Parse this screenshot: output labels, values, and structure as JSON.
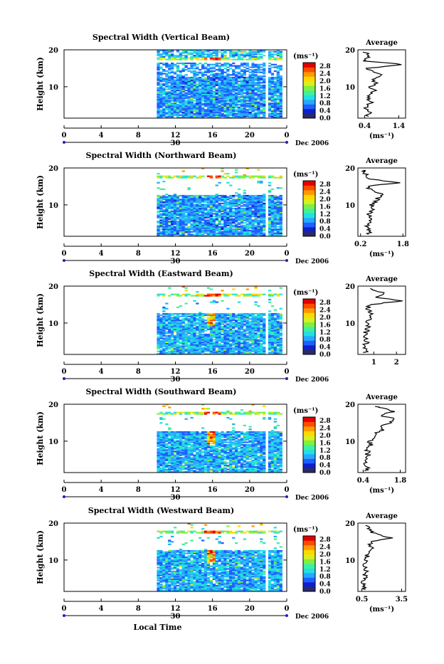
{
  "chart_data": [
    {
      "type": "heatmap",
      "title": "Spectral Width (Vertical Beam)",
      "xlabel": "",
      "ylabel": "Height (km)",
      "x_ticks": [
        "0",
        "4",
        "8",
        "12",
        "16",
        "20",
        "0"
      ],
      "xlim": [
        0,
        24
      ],
      "ylim": [
        1.5,
        20
      ],
      "y_ticks": [
        "20",
        "10"
      ],
      "date_label": "30",
      "month_label": "Dec 2006",
      "colorbar": {
        "label": "(ms⁻¹)",
        "ticks": [
          "2.8",
          "2.4",
          "2.0",
          "1.6",
          "1.2",
          "0.8",
          "0.4",
          "0.0"
        ],
        "range": [
          0.0,
          3.0
        ]
      },
      "data_time_range": [
        10,
        23.5
      ],
      "gap_time": 21.8,
      "average": {
        "title": "Average",
        "xlabel": "(ms⁻¹)",
        "x_ticks": [
          "0.4",
          "1.4"
        ],
        "xlim": [
          0.2,
          1.6
        ],
        "height": [
          2,
          3,
          4,
          5,
          6,
          7,
          8,
          9,
          10,
          11,
          12,
          13,
          14,
          15,
          16,
          17,
          18,
          19,
          19.5
        ],
        "value": [
          0.45,
          0.55,
          0.4,
          0.5,
          0.6,
          0.45,
          0.55,
          0.7,
          0.5,
          0.8,
          0.6,
          0.9,
          0.6,
          0.45,
          1.55,
          0.4,
          0.5,
          0.45,
          0.4
        ]
      }
    },
    {
      "type": "heatmap",
      "title": "Spectral Width (Northward Beam)",
      "xlabel": "",
      "ylabel": "Height (km)",
      "x_ticks": [
        "0",
        "4",
        "8",
        "12",
        "16",
        "20",
        "0"
      ],
      "xlim": [
        0,
        24
      ],
      "ylim": [
        1.5,
        20
      ],
      "y_ticks": [
        "20",
        "10"
      ],
      "date_label": "30",
      "month_label": "Dec 2006",
      "colorbar": {
        "label": "(ms⁻¹)",
        "ticks": [
          "2.8",
          "2.4",
          "2.0",
          "1.6",
          "1.2",
          "0.8",
          "0.4",
          "0.0"
        ],
        "range": [
          0.0,
          3.0
        ]
      },
      "data_time_range": [
        10,
        23.5
      ],
      "gap_time": 21.8,
      "average": {
        "title": "Average",
        "xlabel": "(ms⁻¹)",
        "x_ticks": [
          "0.2",
          "1.8"
        ],
        "xlim": [
          0.1,
          1.9
        ],
        "height": [
          2,
          3,
          4,
          5,
          6,
          7,
          8,
          9,
          10,
          11,
          12,
          13,
          14,
          15,
          16,
          17,
          18,
          19,
          19.5
        ],
        "value": [
          0.5,
          0.55,
          0.45,
          0.55,
          0.6,
          0.5,
          0.55,
          0.7,
          0.6,
          0.75,
          0.9,
          1.0,
          0.6,
          0.4,
          1.7,
          0.5,
          0.4,
          0.35,
          0.3
        ]
      }
    },
    {
      "type": "heatmap",
      "title": "Spectral Width (Eastward Beam)",
      "xlabel": "",
      "ylabel": "Height (km)",
      "x_ticks": [
        "0",
        "4",
        "8",
        "12",
        "16",
        "20",
        "0"
      ],
      "xlim": [
        0,
        24
      ],
      "ylim": [
        1.5,
        20
      ],
      "y_ticks": [
        "20",
        "10"
      ],
      "date_label": "30",
      "month_label": "Dec 2006",
      "colorbar": {
        "label": "(ms⁻¹)",
        "ticks": [
          "2.8",
          "2.4",
          "2.0",
          "1.6",
          "1.2",
          "0.8",
          "0.4",
          "0.0"
        ],
        "range": [
          0.0,
          3.0
        ]
      },
      "data_time_range": [
        10,
        23.5
      ],
      "gap_time": 21.8,
      "average": {
        "title": "Average",
        "xlabel": "",
        "x_ticks": [
          "1",
          "2"
        ],
        "xlim": [
          0.3,
          2.4
        ],
        "height": [
          2,
          3,
          4,
          5,
          6,
          7,
          8,
          9,
          10,
          11,
          12,
          13,
          14,
          15,
          16,
          17,
          18,
          19,
          19.5
        ],
        "value": [
          0.6,
          0.65,
          0.6,
          0.7,
          0.65,
          0.6,
          0.7,
          0.75,
          0.7,
          0.8,
          0.9,
          0.8,
          0.7,
          0.9,
          2.2,
          1.2,
          1.5,
          1.0,
          0.8
        ]
      }
    },
    {
      "type": "heatmap",
      "title": "Spectral Width (Southward Beam)",
      "xlabel": "",
      "ylabel": "Height (km)",
      "x_ticks": [
        "0",
        "4",
        "8",
        "12",
        "16",
        "20",
        "0"
      ],
      "xlim": [
        0,
        24
      ],
      "ylim": [
        1.5,
        20
      ],
      "y_ticks": [
        "20",
        "10"
      ],
      "date_label": "30",
      "month_label": "Dec 2006",
      "colorbar": {
        "label": "(ms⁻¹)",
        "ticks": [
          "2.8",
          "2.4",
          "2.0",
          "1.6",
          "1.2",
          "0.8",
          "0.4",
          "0.0"
        ],
        "range": [
          0.0,
          3.0
        ]
      },
      "data_time_range": [
        10,
        23.5
      ],
      "gap_time": 21.8,
      "average": {
        "title": "Average",
        "xlabel": "(ms⁻¹)",
        "x_ticks": [
          "0.4",
          "1.8"
        ],
        "xlim": [
          0.2,
          2.0
        ],
        "height": [
          2,
          3,
          4,
          5,
          6,
          7,
          8,
          9,
          10,
          11,
          12,
          13,
          14,
          15,
          16,
          17,
          18,
          19,
          19.5
        ],
        "value": [
          0.5,
          0.55,
          0.5,
          0.55,
          0.6,
          0.55,
          0.6,
          0.7,
          0.65,
          0.8,
          0.9,
          1.1,
          1.0,
          1.4,
          1.6,
          1.0,
          1.5,
          1.2,
          0.8
        ]
      }
    },
    {
      "type": "heatmap",
      "title": "Spectral Width (Westward Beam)",
      "xlabel": "Local Time",
      "ylabel": "Height (km)",
      "x_ticks": [
        "0",
        "4",
        "8",
        "12",
        "16",
        "20",
        "0"
      ],
      "xlim": [
        0,
        24
      ],
      "ylim": [
        1.5,
        20
      ],
      "y_ticks": [
        "20",
        "10"
      ],
      "date_label": "30",
      "month_label": "Dec 2006",
      "colorbar": {
        "label": "(ms⁻¹)",
        "ticks": [
          "2.8",
          "2.4",
          "2.0",
          "1.6",
          "1.2",
          "0.8",
          "0.4",
          "0.0"
        ],
        "range": [
          0.0,
          3.0
        ]
      },
      "data_time_range": [
        10,
        23.5
      ],
      "gap_time": 21.8,
      "average": {
        "title": "Average",
        "xlabel": "(ms⁻¹)",
        "x_ticks": [
          "0.5",
          "3.5"
        ],
        "xlim": [
          0.2,
          3.8
        ],
        "height": [
          2,
          3,
          4,
          5,
          6,
          7,
          8,
          9,
          10,
          11,
          12,
          13,
          14,
          15,
          16,
          17,
          18,
          19,
          19.5
        ],
        "value": [
          0.6,
          0.7,
          0.65,
          0.7,
          0.75,
          0.8,
          0.7,
          0.75,
          0.8,
          0.9,
          1.0,
          1.2,
          1.1,
          1.3,
          2.8,
          1.5,
          1.2,
          1.0,
          0.8
        ]
      }
    }
  ],
  "colors": {
    "frame": "#000000",
    "colormap": [
      "#2a2a6a",
      "#1020c8",
      "#1f5fff",
      "#27a8ff",
      "#23e0e0",
      "#40f0a0",
      "#80f040",
      "#d8f020",
      "#ffd800",
      "#ff9a00",
      "#ff4a00",
      "#e00000"
    ]
  }
}
